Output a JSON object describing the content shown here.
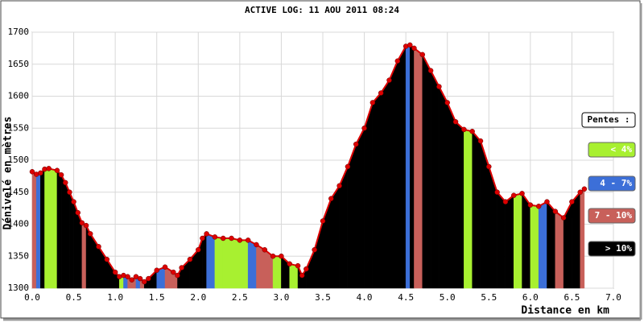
{
  "chart_data": {
    "type": "area",
    "title": "ACTIVE LOG: 11 AOU 2011 08:24",
    "y_label": "Dénivelé en mètres",
    "x_label": "Distance en km",
    "legend_title": "Pentes :",
    "legend": [
      {
        "label": "< 4%",
        "color": "#a8f030",
        "max": 4
      },
      {
        "label": "4 - 7%",
        "color": "#3c6fd8",
        "max": 7
      },
      {
        "label": "7 - 10%",
        "color": "#c8605a",
        "max": 10
      },
      {
        "label": "> 10%",
        "color": "#000000"
      }
    ],
    "line_color": "#dd0000",
    "x": [
      0,
      0.05,
      0.1,
      0.15,
      0.2,
      0.3,
      0.35,
      0.4,
      0.45,
      0.5,
      0.55,
      0.6,
      0.65,
      0.7,
      0.8,
      0.9,
      1.0,
      1.05,
      1.1,
      1.15,
      1.2,
      1.25,
      1.3,
      1.35,
      1.4,
      1.5,
      1.6,
      1.7,
      1.75,
      1.8,
      1.9,
      2.0,
      2.05,
      2.1,
      2.2,
      2.3,
      2.4,
      2.5,
      2.6,
      2.7,
      2.8,
      2.9,
      3.0,
      3.1,
      3.2,
      3.25,
      3.3,
      3.4,
      3.5,
      3.6,
      3.7,
      3.8,
      3.9,
      4.0,
      4.1,
      4.2,
      4.3,
      4.4,
      4.5,
      4.55,
      4.6,
      4.7,
      4.8,
      4.9,
      5.0,
      5.1,
      5.2,
      5.3,
      5.4,
      5.5,
      5.6,
      5.7,
      5.8,
      5.9,
      6.0,
      6.1,
      6.2,
      6.3,
      6.4,
      6.5,
      6.6,
      6.65
    ],
    "values": [
      1482,
      1478,
      1480,
      1486,
      1487,
      1484,
      1477,
      1465,
      1450,
      1435,
      1418,
      1402,
      1398,
      1385,
      1365,
      1345,
      1325,
      1318,
      1320,
      1318,
      1313,
      1318,
      1315,
      1310,
      1315,
      1328,
      1333,
      1325,
      1320,
      1332,
      1345,
      1360,
      1378,
      1385,
      1380,
      1378,
      1378,
      1375,
      1375,
      1368,
      1360,
      1350,
      1350,
      1338,
      1335,
      1320,
      1330,
      1360,
      1405,
      1440,
      1460,
      1490,
      1525,
      1550,
      1590,
      1605,
      1625,
      1655,
      1678,
      1680,
      1675,
      1665,
      1640,
      1615,
      1590,
      1560,
      1548,
      1545,
      1530,
      1490,
      1450,
      1435,
      1445,
      1448,
      1430,
      1428,
      1435,
      1420,
      1410,
      1435,
      1450,
      1455
    ],
    "xlim": [
      0,
      7
    ],
    "ylim": [
      1300,
      1700
    ],
    "xticks": [
      {
        "value": 0,
        "label": "0.0"
      },
      {
        "value": 0.5,
        "label": "0.5"
      },
      {
        "value": 1,
        "label": "1.0"
      },
      {
        "value": 1.5,
        "label": "1.5"
      },
      {
        "value": 2,
        "label": "2.0"
      },
      {
        "value": 2.5,
        "label": "2.5"
      },
      {
        "value": 3,
        "label": "3.0"
      },
      {
        "value": 3.5,
        "label": "3.5"
      },
      {
        "value": 4,
        "label": "4.0"
      },
      {
        "value": 4.5,
        "label": "4.5"
      },
      {
        "value": 5,
        "label": "5.0"
      },
      {
        "value": 5.5,
        "label": "5.5"
      },
      {
        "value": 6,
        "label": "6.0"
      },
      {
        "value": 6.5,
        "label": "6.5"
      },
      {
        "value": 7,
        "label": "7.0"
      }
    ],
    "yticks": [
      1300,
      1350,
      1400,
      1450,
      1500,
      1550,
      1600,
      1650,
      1700
    ],
    "grid": true
  }
}
